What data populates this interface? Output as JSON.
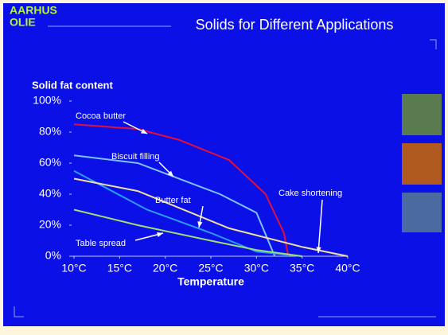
{
  "logo": {
    "lines": [
      "AARHUS",
      "OLIE"
    ]
  },
  "chart_data": {
    "type": "line",
    "title": "Solids for Different Applications",
    "y_label": "Solid fat content",
    "x_label": "Temperature",
    "xlim": [
      10,
      40
    ],
    "ylim": [
      0,
      100
    ],
    "xticks": [
      {
        "value": 10,
        "label": "10°C"
      },
      {
        "value": 15,
        "label": "15°C"
      },
      {
        "value": 20,
        "label": "20°C"
      },
      {
        "value": 25,
        "label": "25°C"
      },
      {
        "value": 30,
        "label": "30°C"
      },
      {
        "value": 35,
        "label": "35°C"
      },
      {
        "value": 40,
        "label": "40°C"
      }
    ],
    "yticks": [
      {
        "value": 0,
        "label": "0%"
      },
      {
        "value": 20,
        "label": "20%"
      },
      {
        "value": 40,
        "label": "40%"
      },
      {
        "value": 60,
        "label": "60%"
      },
      {
        "value": 80,
        "label": "80%"
      },
      {
        "value": 100,
        "label": "100%"
      }
    ],
    "series": [
      {
        "name": "Cocoa butter",
        "color": "#e0103c",
        "x": [
          10,
          17,
          21.5,
          27,
          31,
          33,
          33.5
        ],
        "values": [
          85,
          82,
          75,
          62,
          40,
          15,
          0
        ]
      },
      {
        "name": "Biscuit filling",
        "color": "#80c0ff",
        "x": [
          10,
          17,
          26,
          30,
          32
        ],
        "values": [
          65,
          60,
          40,
          28,
          0
        ]
      },
      {
        "name": "Butter fat",
        "color": "#2a9cff",
        "x": [
          10,
          18,
          25,
          30,
          35
        ],
        "values": [
          55,
          30,
          15,
          3,
          0
        ]
      },
      {
        "name": "Cake shortening",
        "color": "#f0e0a0",
        "x": [
          10,
          17,
          27,
          35,
          40
        ],
        "values": [
          50,
          42,
          18,
          6,
          0
        ]
      },
      {
        "name": "Table spread",
        "color": "#a0e070",
        "x": [
          10,
          17,
          25,
          30,
          35
        ],
        "values": [
          30,
          20,
          10,
          4,
          0
        ]
      }
    ]
  }
}
